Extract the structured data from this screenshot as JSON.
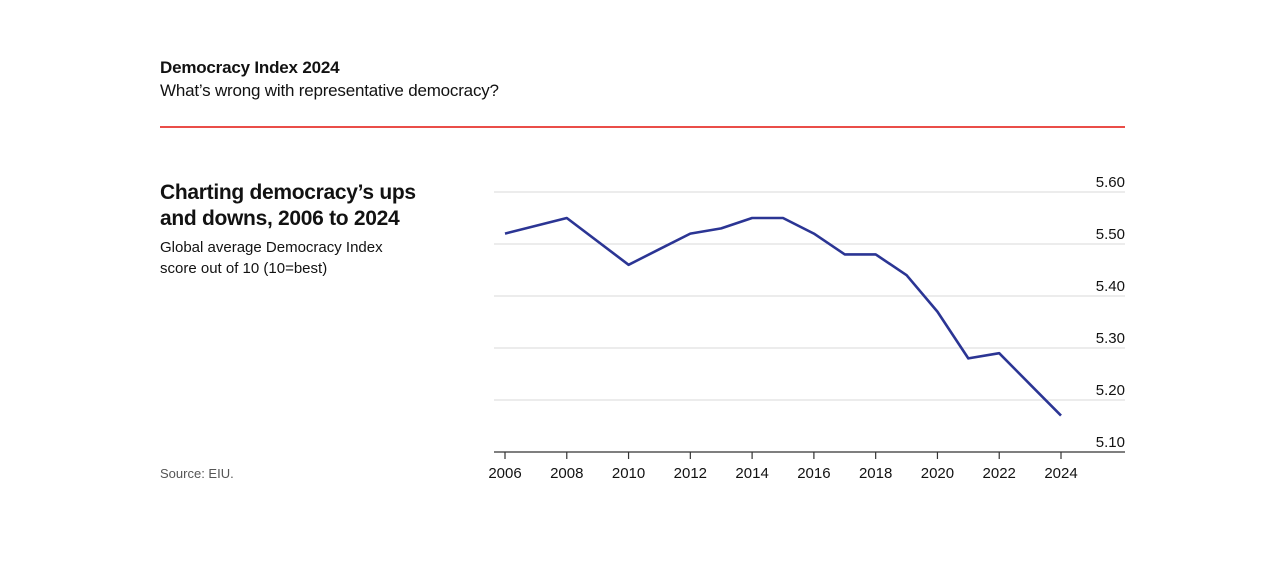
{
  "header": {
    "title": "Democracy Index 2024",
    "subtitle": "What’s wrong with representative democracy?"
  },
  "chart": {
    "title_line1": "Charting democracy’s ups",
    "title_line2": "and downs, 2006 to 2024",
    "subtitle_line1": "Global average Democracy Index",
    "subtitle_line2": "score out of 10 (10=best)"
  },
  "source": "Source: EIU.",
  "colors": {
    "accent_rule": "#e3120b",
    "line": "#2b3594",
    "grid": "#d9d9d9"
  },
  "chart_data": {
    "type": "line",
    "title": "Charting democracy’s ups and downs, 2006 to 2024",
    "subtitle": "Global average Democracy Index score out of 10 (10=best)",
    "x": [
      2006,
      2008,
      2010,
      2011,
      2012,
      2013,
      2014,
      2015,
      2016,
      2017,
      2018,
      2019,
      2020,
      2021,
      2022,
      2023,
      2024
    ],
    "series": [
      {
        "values": [
          5.52,
          5.55,
          5.46,
          5.49,
          5.52,
          5.53,
          5.55,
          5.55,
          5.52,
          5.48,
          5.48,
          5.44,
          5.37,
          5.28,
          5.29,
          5.23,
          5.17
        ]
      }
    ],
    "xticks": [
      "2006",
      "2008",
      "2010",
      "2012",
      "2014",
      "2016",
      "2018",
      "2020",
      "2022",
      "2024"
    ],
    "yticks": [
      "5.10",
      "5.20",
      "5.30",
      "5.40",
      "5.50",
      "5.60"
    ],
    "xlim": [
      2006,
      2024
    ],
    "ylim": [
      5.1,
      5.6
    ],
    "grid": true,
    "y_axis_side": "right"
  }
}
